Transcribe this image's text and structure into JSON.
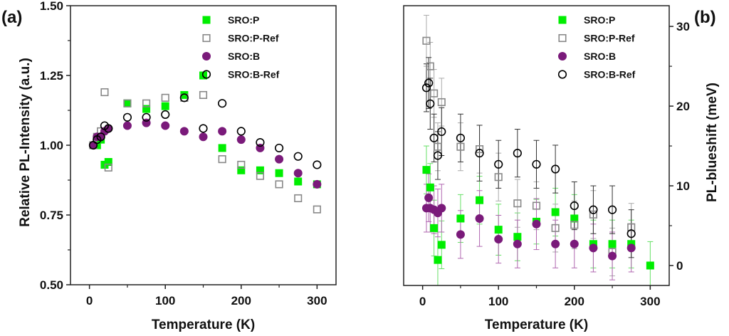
{
  "chart_data": [
    {
      "panel_label": "(a)",
      "type": "scatter",
      "xlabel": "Temperature (K)",
      "ylabel": "Relative PL-Intensity (a.u.)",
      "xlim": [
        -25,
        325
      ],
      "ylim": [
        0.5,
        1.5
      ],
      "xticks": [
        0,
        100,
        200,
        300
      ],
      "xtick_labels": [
        "0",
        "100",
        "200",
        "300"
      ],
      "yticks": [
        0.5,
        0.75,
        1.0,
        1.25,
        1.5
      ],
      "ytick_labels": [
        "0.50",
        "0.75",
        "1.00",
        "1.25",
        "1.50"
      ],
      "grid": false,
      "legend_position": "top-right",
      "series": [
        {
          "name": "SRO:P",
          "marker": "filled-square",
          "color": "#00ee00",
          "x": [
            5,
            10,
            15,
            20,
            25,
            50,
            75,
            100,
            125,
            150,
            175,
            200,
            225,
            250,
            275,
            300
          ],
          "y": [
            1.0,
            1.0,
            1.02,
            0.93,
            0.94,
            1.15,
            1.13,
            1.14,
            1.18,
            1.25,
            0.99,
            0.91,
            0.91,
            0.9,
            0.87,
            0.86
          ]
        },
        {
          "name": "SRO:P-Ref",
          "marker": "open-square",
          "color": "#888888",
          "x": [
            5,
            10,
            15,
            20,
            25,
            50,
            75,
            100,
            125,
            150,
            175,
            200,
            225,
            250,
            275,
            300
          ],
          "y": [
            1.0,
            1.03,
            1.05,
            1.19,
            0.92,
            1.15,
            1.15,
            1.17,
            1.17,
            1.18,
            0.95,
            0.93,
            0.89,
            0.86,
            0.81,
            0.77
          ]
        },
        {
          "name": "SRO:B",
          "marker": "filled-circle",
          "color": "#7a1a7a",
          "x": [
            5,
            10,
            15,
            20,
            25,
            50,
            75,
            100,
            125,
            150,
            175,
            200,
            225,
            250,
            275,
            300
          ],
          "y": [
            1.0,
            1.03,
            1.03,
            1.05,
            1.06,
            1.07,
            1.08,
            1.07,
            1.05,
            1.03,
            1.05,
            1.02,
            0.99,
            0.95,
            0.9,
            0.86
          ]
        },
        {
          "name": "SRO:B-Ref",
          "marker": "open-circle",
          "color": "#000000",
          "x": [
            5,
            10,
            15,
            20,
            25,
            50,
            75,
            100,
            125,
            150,
            175,
            200,
            225,
            250,
            275,
            300
          ],
          "y": [
            1.0,
            1.02,
            1.03,
            1.07,
            1.06,
            1.1,
            1.1,
            1.11,
            1.17,
            1.06,
            1.15,
            1.05,
            1.01,
            0.99,
            0.96,
            0.93
          ]
        }
      ]
    },
    {
      "panel_label": "(b)",
      "type": "scatter",
      "xlabel": "Temperature (K)",
      "ylabel": "PL-blueshift (meV)",
      "y_axis_side": "right",
      "xlim": [
        -25,
        325
      ],
      "ylim": [
        -2.5,
        32.6
      ],
      "xticks": [
        0,
        100,
        200,
        300
      ],
      "xtick_labels": [
        "0",
        "100",
        "200",
        "300"
      ],
      "yticks": [
        0,
        10,
        20,
        30
      ],
      "ytick_labels": [
        "0",
        "10",
        "20",
        "30"
      ],
      "grid": false,
      "legend_position": "top-right",
      "series": [
        {
          "name": "SRO:P",
          "marker": "filled-square",
          "color": "#00ee00",
          "errorbar_color": "#66e066",
          "x": [
            5,
            10,
            15,
            20,
            25,
            50,
            75,
            100,
            125,
            150,
            175,
            200,
            225,
            250,
            275,
            300
          ],
          "y": [
            12.0,
            9.8,
            4.7,
            0.7,
            2.6,
            5.9,
            8.2,
            4.5,
            3.6,
            5.5,
            6.7,
            5.9,
            2.7,
            2.7,
            2.7,
            0.0
          ],
          "yerr": [
            3.0,
            3.0,
            3.5,
            3.5,
            3.0,
            3.0,
            3.0,
            3.2,
            3.0,
            2.8,
            3.0,
            3.0,
            3.0,
            3.0,
            3.0,
            3.0
          ]
        },
        {
          "name": "SRO:P-Ref",
          "marker": "open-square",
          "color": "#888888",
          "errorbar_color": "#aaaaaa",
          "x": [
            5,
            10,
            15,
            20,
            25,
            50,
            75,
            100,
            125,
            150,
            175,
            200,
            225,
            250,
            275
          ],
          "y": [
            28.2,
            25.0,
            21.6,
            14.9,
            20.5,
            14.9,
            14.6,
            11.1,
            7.8,
            7.5,
            4.7,
            5.1,
            6.4,
            1.7,
            4.8
          ],
          "yerr": [
            3.2,
            3.0,
            3.0,
            3.0,
            3.0,
            3.0,
            3.0,
            3.0,
            3.0,
            3.0,
            3.0,
            3.0,
            3.0,
            3.0,
            3.0
          ]
        },
        {
          "name": "SRO:B",
          "marker": "filled-circle",
          "color": "#7a1a7a",
          "errorbar_color": "#b066b0",
          "x": [
            5,
            8,
            10,
            15,
            20,
            25,
            50,
            75,
            100,
            125,
            150,
            175,
            200,
            225,
            250,
            275
          ],
          "y": [
            7.2,
            8.5,
            7.2,
            7.0,
            6.6,
            7.2,
            3.9,
            5.9,
            3.3,
            2.7,
            5.2,
            2.7,
            2.7,
            2.2,
            1.2,
            2.2
          ],
          "yerr": [
            3.0,
            3.0,
            3.0,
            3.0,
            3.0,
            3.0,
            3.0,
            3.5,
            3.0,
            3.0,
            3.2,
            3.0,
            3.0,
            3.0,
            3.0,
            3.0
          ]
        },
        {
          "name": "SRO:B-Ref",
          "marker": "open-circle",
          "color": "#000000",
          "errorbar_color": "#333333",
          "x": [
            5,
            8,
            10,
            15,
            20,
            25,
            50,
            75,
            100,
            125,
            150,
            175,
            200,
            225,
            250,
            275
          ],
          "y": [
            22.3,
            22.9,
            20.3,
            16.0,
            13.8,
            16.8,
            16.0,
            14.1,
            12.7,
            14.1,
            12.7,
            12.1,
            7.5,
            7.0,
            7.0,
            4.0
          ],
          "yerr": [
            3.0,
            3.2,
            3.2,
            3.0,
            3.0,
            3.0,
            3.0,
            3.5,
            3.0,
            3.0,
            3.0,
            3.0,
            3.0,
            3.0,
            3.0,
            3.0
          ]
        }
      ]
    }
  ]
}
